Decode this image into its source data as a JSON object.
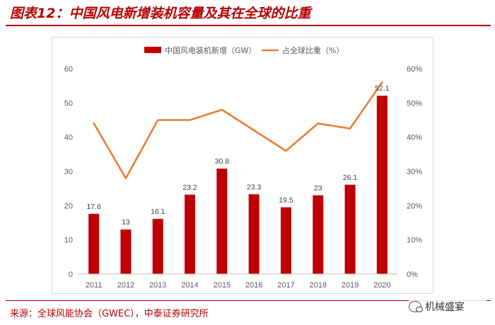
{
  "figure": {
    "title": "图表12：中国风电新增装机容量及其在全球的比重",
    "source": "来源：全球风能协会（GWEC），中泰证券研究所",
    "watermark": "机械盛宴",
    "watermark_icon": "wechat-icon",
    "accent_color": "#b50000"
  },
  "chart_data": {
    "type": "bar",
    "title": "",
    "categories": [
      "2011",
      "2012",
      "2013",
      "2014",
      "2015",
      "2016",
      "2017",
      "2018",
      "2019",
      "2020"
    ],
    "series": [
      {
        "name": "中国风电装机新增（GW）",
        "type": "bar",
        "axis": "left",
        "color": "#c00000",
        "values": [
          17.6,
          13,
          16.1,
          23.2,
          30.8,
          23.3,
          19.5,
          23,
          26.1,
          52.1
        ],
        "labels": [
          "17.6",
          "13",
          "16.1",
          "23.2",
          "30.8",
          "23.3",
          "19.5",
          "23",
          "26.1",
          "52.1"
        ]
      },
      {
        "name": "占全球比重（%）",
        "type": "line",
        "axis": "right",
        "color": "#ed7d31",
        "values": [
          44,
          28,
          45,
          45,
          48,
          42,
          36,
          44,
          42.5,
          56
        ]
      }
    ],
    "y_left": {
      "range": [
        0,
        60
      ],
      "ticks": [
        "0",
        "10",
        "20",
        "30",
        "40",
        "50",
        "60"
      ]
    },
    "y_right": {
      "range": [
        0,
        60
      ],
      "ticks": [
        "0%",
        "10%",
        "20%",
        "30%",
        "40%",
        "50%",
        "60%"
      ]
    },
    "grid": false,
    "legend": "top-center"
  }
}
